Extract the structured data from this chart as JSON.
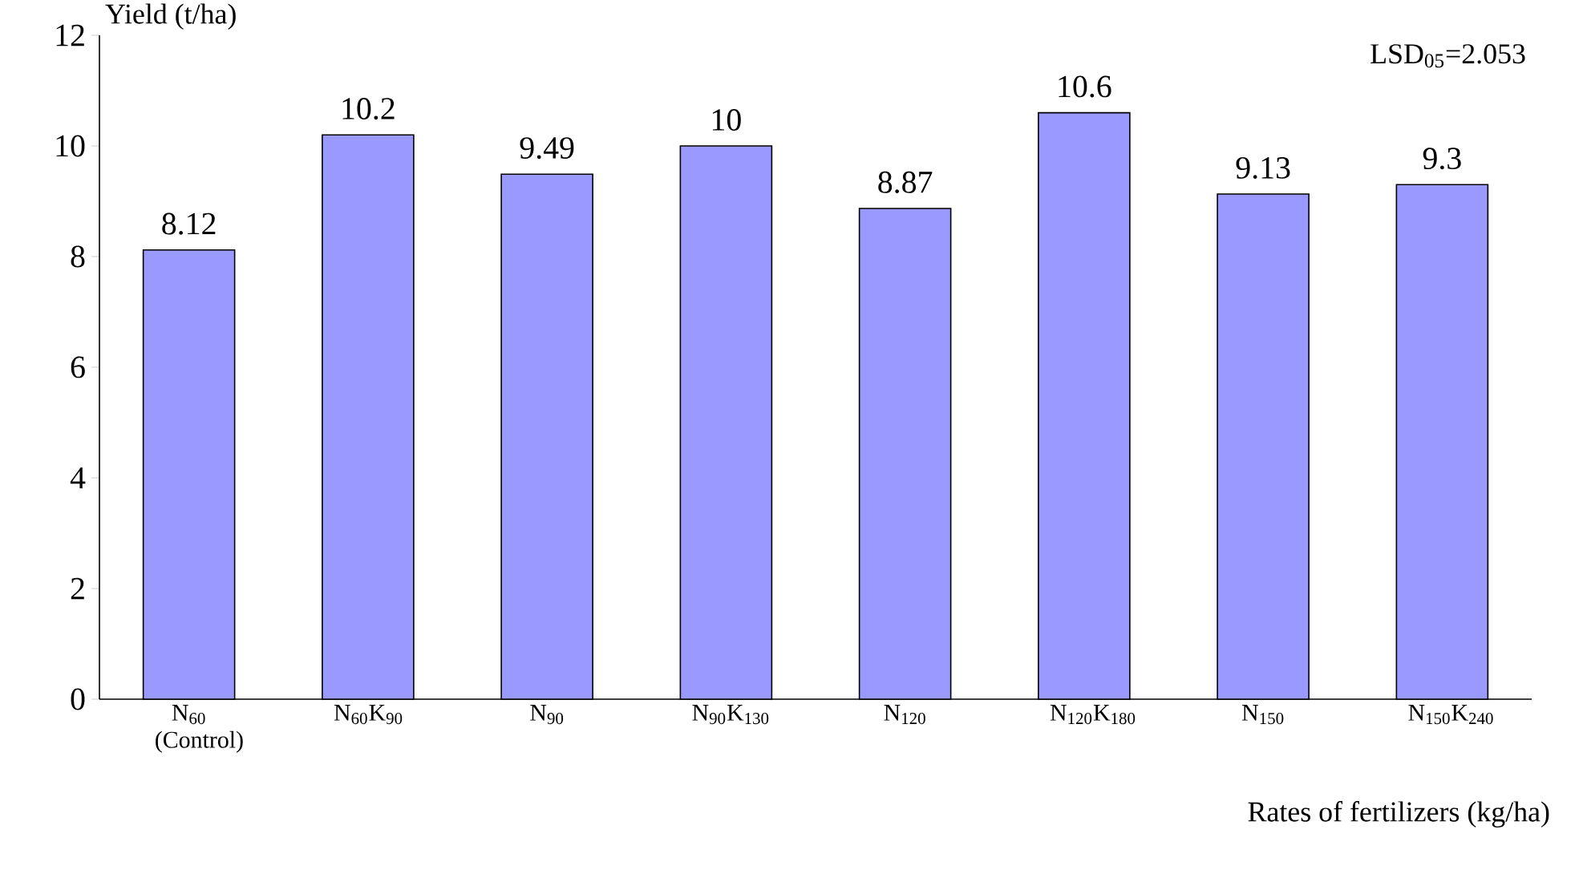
{
  "chart_data": {
    "type": "bar",
    "categories": [
      "N$_{60}$ (Control)",
      "N$_{60}$K$_{90}$",
      "N$_{90}$",
      "N$_{90}$K$_{130}$",
      "N$_{120}$",
      "N$_{120}$K$_{180}$",
      "N$_{150}$",
      "N$_{150}$K$_{240}$"
    ],
    "values": [
      8.12,
      10.2,
      9.49,
      10,
      8.87,
      10.6,
      9.13,
      9.3
    ],
    "color": "#9999ff",
    "ylim": [
      0,
      12
    ],
    "yticks": [
      0,
      2,
      4,
      6,
      8,
      10,
      12
    ],
    "ylabel": "Yield (t/ha)",
    "xlabel": "Rates of fertilizers (kg/ha)",
    "annotations": [
      "LSD$_{05}$=2.053"
    ],
    "data_labels": true
  }
}
